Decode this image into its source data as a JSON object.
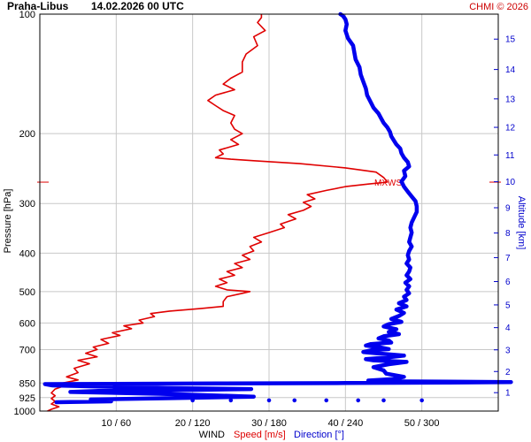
{
  "chart_data": {
    "type": "line",
    "title": "Praha-Libus",
    "datetime": "14.02.2026 00 UTC",
    "credit": "CHMI © 2026",
    "ylabel": "Pressure [hPa]",
    "ylabel_right": "Altitude [km]",
    "xlabel_parts": {
      "wind": "WIND",
      "speed": "Speed [m/s]",
      "direction": "Direction [°]"
    },
    "y_scale": "log",
    "ylim": [
      1000,
      100
    ],
    "pressure_ticks": [
      100,
      200,
      300,
      400,
      500,
      600,
      700,
      850,
      925,
      1000
    ],
    "altitude_ticks": [
      1,
      2,
      3,
      4,
      5,
      6,
      7,
      8,
      9,
      10,
      11,
      12,
      13,
      14,
      15
    ],
    "x_tick_labels": [
      "10 / 60",
      "20 / 120",
      "30 / 180",
      "40 / 240",
      "50 / 300"
    ],
    "speed_range": [
      0,
      60
    ],
    "direction_range": [
      0,
      360
    ],
    "max_wind_marker": "MXWS",
    "max_wind_pressure": 265,
    "grid": true,
    "colors": {
      "speed": "#e00000",
      "direction": "#0000ee",
      "grid": "#c8c8c8",
      "marker": "#e00000"
    },
    "series": [
      {
        "name": "Speed [m/s]",
        "points": [
          [
            1.0,
            1000
          ],
          [
            1.5,
            990
          ],
          [
            2.5,
            975
          ],
          [
            1.5,
            960
          ],
          [
            2.0,
            945
          ],
          [
            1.5,
            930
          ],
          [
            2.0,
            915
          ],
          [
            1.5,
            900
          ],
          [
            2.0,
            880
          ],
          [
            3.5,
            860
          ],
          [
            3.0,
            850
          ],
          [
            5.0,
            835
          ],
          [
            3.5,
            820
          ],
          [
            5.0,
            800
          ],
          [
            4.5,
            780
          ],
          [
            6.5,
            760
          ],
          [
            5.0,
            745
          ],
          [
            7.5,
            730
          ],
          [
            6.0,
            715
          ],
          [
            7.5,
            700
          ],
          [
            7.0,
            690
          ],
          [
            9.0,
            675
          ],
          [
            8.0,
            660
          ],
          [
            10.5,
            645
          ],
          [
            9.5,
            635
          ],
          [
            12.0,
            620
          ],
          [
            11.0,
            610
          ],
          [
            13.5,
            600
          ],
          [
            13.0,
            590
          ],
          [
            15.0,
            578
          ],
          [
            14.5,
            568
          ],
          [
            17.0,
            560
          ],
          [
            21.0,
            552
          ],
          [
            24.0,
            545
          ],
          [
            24.0,
            530
          ],
          [
            24.5,
            515
          ],
          [
            26.5,
            505
          ],
          [
            27.5,
            500
          ],
          [
            24.5,
            495
          ],
          [
            23.0,
            485
          ],
          [
            24.5,
            475
          ],
          [
            23.5,
            465
          ],
          [
            25.5,
            455
          ],
          [
            24.5,
            445
          ],
          [
            26.5,
            435
          ],
          [
            25.5,
            425
          ],
          [
            27.5,
            415
          ],
          [
            26.5,
            405
          ],
          [
            28.0,
            395
          ],
          [
            27.5,
            385
          ],
          [
            29.0,
            375
          ],
          [
            28.0,
            365
          ],
          [
            30.0,
            355
          ],
          [
            32.0,
            345
          ],
          [
            31.5,
            338
          ],
          [
            33.5,
            328
          ],
          [
            32.5,
            320
          ],
          [
            34.5,
            312
          ],
          [
            35.5,
            305
          ],
          [
            34.5,
            298
          ],
          [
            36.0,
            292
          ],
          [
            35.0,
            285
          ],
          [
            37.5,
            278
          ],
          [
            40.0,
            272
          ],
          [
            43.0,
            268
          ],
          [
            45.5,
            265
          ],
          [
            45.0,
            258
          ],
          [
            44.0,
            250
          ],
          [
            40.0,
            244
          ],
          [
            34.0,
            238
          ],
          [
            28.0,
            234
          ],
          [
            25.0,
            232
          ],
          [
            23.0,
            230
          ],
          [
            24.0,
            225
          ],
          [
            23.5,
            220
          ],
          [
            26.0,
            213
          ],
          [
            25.0,
            207
          ],
          [
            26.5,
            200
          ],
          [
            25.5,
            195
          ],
          [
            25.0,
            188
          ],
          [
            25.5,
            180
          ],
          [
            24.0,
            175
          ],
          [
            23.0,
            170
          ],
          [
            22.0,
            165
          ],
          [
            23.0,
            160
          ],
          [
            25.5,
            155
          ],
          [
            24.0,
            150
          ],
          [
            25.0,
            145
          ],
          [
            26.5,
            140
          ],
          [
            26.5,
            132
          ],
          [
            27.0,
            126
          ],
          [
            28.5,
            120
          ],
          [
            28.0,
            114
          ],
          [
            29.5,
            110
          ],
          [
            28.5,
            105
          ],
          [
            29.0,
            102
          ],
          [
            29.0,
            100
          ]
        ]
      },
      {
        "name": "Direction [°]",
        "points": [
          [
            13,
            950
          ],
          [
            56,
            945
          ],
          [
            52,
            940
          ],
          [
            40,
            935
          ],
          [
            104,
            928
          ],
          [
            168,
            920
          ],
          [
            130,
            912
          ],
          [
            94,
            905
          ],
          [
            24,
            895
          ],
          [
            46,
            890
          ],
          [
            110,
            885
          ],
          [
            166,
            880
          ],
          [
            100,
            875
          ],
          [
            50,
            868
          ],
          [
            10,
            862
          ],
          [
            4,
            855
          ],
          [
            140,
            852
          ],
          [
            240,
            850
          ],
          [
            320,
            848
          ],
          [
            370,
            845
          ],
          [
            290,
            842
          ],
          [
            258,
            838
          ],
          [
            278,
            830
          ],
          [
            286,
            820
          ],
          [
            272,
            805
          ],
          [
            270,
            790
          ],
          [
            262,
            775
          ],
          [
            274,
            762
          ],
          [
            288,
            752
          ],
          [
            262,
            745
          ],
          [
            256,
            740
          ],
          [
            274,
            732
          ],
          [
            286,
            725
          ],
          [
            268,
            717
          ],
          [
            254,
            710
          ],
          [
            260,
            703
          ],
          [
            274,
            698
          ],
          [
            266,
            690
          ],
          [
            256,
            684
          ],
          [
            260,
            678
          ],
          [
            276,
            672
          ],
          [
            274,
            664
          ],
          [
            266,
            656
          ],
          [
            270,
            648
          ],
          [
            282,
            640
          ],
          [
            274,
            632
          ],
          [
            280,
            622
          ],
          [
            270,
            612
          ],
          [
            274,
            604
          ],
          [
            284,
            596
          ],
          [
            276,
            586
          ],
          [
            282,
            576
          ],
          [
            286,
            566
          ],
          [
            280,
            555
          ],
          [
            288,
            545
          ],
          [
            282,
            535
          ],
          [
            288,
            525
          ],
          [
            286,
            515
          ],
          [
            290,
            505
          ],
          [
            288,
            495
          ],
          [
            290,
            485
          ],
          [
            287,
            475
          ],
          [
            291,
            465
          ],
          [
            288,
            455
          ],
          [
            290,
            445
          ],
          [
            291,
            435
          ],
          [
            288,
            425
          ],
          [
            290,
            415
          ],
          [
            289,
            405
          ],
          [
            290,
            395
          ],
          [
            292,
            385
          ],
          [
            290,
            375
          ],
          [
            291,
            365
          ],
          [
            292,
            355
          ],
          [
            291,
            345
          ],
          [
            292,
            335
          ],
          [
            294,
            325
          ],
          [
            296,
            315
          ],
          [
            296,
            305
          ],
          [
            295,
            296
          ],
          [
            292,
            288
          ],
          [
            289,
            280
          ],
          [
            286,
            272
          ],
          [
            284,
            264
          ],
          [
            287,
            256
          ],
          [
            286,
            248
          ],
          [
            290,
            242
          ],
          [
            289,
            236
          ],
          [
            286,
            230
          ],
          [
            284,
            224
          ],
          [
            283,
            218
          ],
          [
            280,
            213
          ],
          [
            278,
            208
          ],
          [
            276,
            203
          ],
          [
            275,
            198
          ],
          [
            273,
            193
          ],
          [
            270,
            188
          ],
          [
            268,
            183
          ],
          [
            266,
            178
          ],
          [
            262,
            172
          ],
          [
            260,
            167
          ],
          [
            257,
            160
          ],
          [
            256,
            154
          ],
          [
            254,
            148
          ],
          [
            252,
            142
          ],
          [
            251,
            136
          ],
          [
            248,
            130
          ],
          [
            247,
            125
          ],
          [
            246,
            120
          ],
          [
            242,
            115
          ],
          [
            240,
            110
          ],
          [
            241,
            106
          ],
          [
            240,
            103
          ],
          [
            238,
            101
          ],
          [
            236,
            100
          ]
        ]
      }
    ],
    "direction_dots_at_pressure": 940,
    "direction_dots_values": [
      120,
      150,
      180,
      200,
      225,
      250,
      270,
      300
    ]
  }
}
